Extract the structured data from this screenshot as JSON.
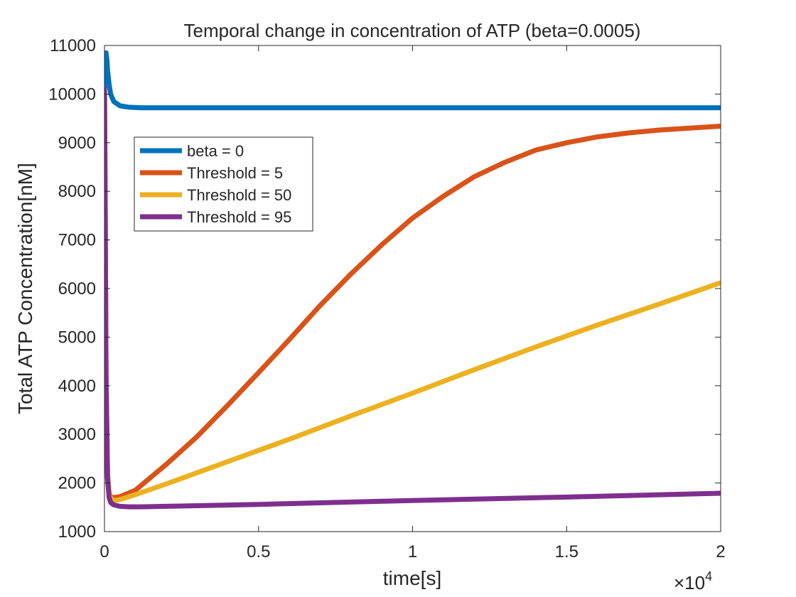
{
  "chart_data": {
    "type": "line",
    "title": "Temporal change in concentration of ATP (beta=0.0005)",
    "xlabel": "time[s]",
    "ylabel": "Total ATP Concentration[nM]",
    "x_exponent_label": "×10",
    "x_exponent_power": "4",
    "xlim": [
      0,
      2
    ],
    "ylim": [
      1000,
      11000
    ],
    "xticks": [
      0,
      0.5,
      1,
      1.5,
      2
    ],
    "xtick_labels": [
      "0",
      "0.5",
      "1",
      "1.5",
      "2"
    ],
    "yticks": [
      1000,
      2000,
      3000,
      4000,
      5000,
      6000,
      7000,
      8000,
      9000,
      10000,
      11000
    ],
    "ytick_labels": [
      "1000",
      "2000",
      "3000",
      "4000",
      "5000",
      "6000",
      "7000",
      "8000",
      "9000",
      "10000",
      "11000"
    ],
    "grid": false,
    "legend_position": "upper-left",
    "series": [
      {
        "name": "beta = 0",
        "color": "#0072BD",
        "x": [
          0,
          0.002,
          0.005,
          0.008,
          0.01,
          0.015,
          0.02,
          0.03,
          0.05,
          0.08,
          0.12,
          0.2,
          0.5,
          1.0,
          1.5,
          2.0
        ],
        "y": [
          10150,
          10700,
          10850,
          10700,
          10500,
          10200,
          10000,
          9850,
          9760,
          9730,
          9720,
          9720,
          9720,
          9720,
          9720,
          9720
        ]
      },
      {
        "name": "Threshold = 5",
        "color": "#D95319",
        "x": [
          0,
          0.002,
          0.005,
          0.01,
          0.015,
          0.02,
          0.03,
          0.05,
          0.1,
          0.2,
          0.3,
          0.4,
          0.5,
          0.6,
          0.7,
          0.8,
          0.9,
          1.0,
          1.1,
          1.2,
          1.3,
          1.4,
          1.5,
          1.6,
          1.7,
          1.8,
          1.9,
          2.0
        ],
        "y": [
          10150,
          8000,
          4200,
          2200,
          1800,
          1720,
          1700,
          1720,
          1850,
          2380,
          2950,
          3600,
          4270,
          4950,
          5650,
          6300,
          6900,
          7450,
          7900,
          8300,
          8600,
          8850,
          9000,
          9120,
          9200,
          9260,
          9300,
          9340
        ]
      },
      {
        "name": "Threshold = 50",
        "color": "#EDB120",
        "x": [
          0,
          0.002,
          0.005,
          0.01,
          0.015,
          0.02,
          0.03,
          0.05,
          0.1,
          0.2,
          0.4,
          0.6,
          0.8,
          1.0,
          1.2,
          1.4,
          1.6,
          1.8,
          2.0
        ],
        "y": [
          10150,
          8000,
          4200,
          2200,
          1800,
          1680,
          1640,
          1660,
          1760,
          1980,
          2440,
          2900,
          3380,
          3850,
          4330,
          4800,
          5250,
          5680,
          6120
        ]
      },
      {
        "name": "Threshold = 95",
        "color": "#7E2F8E",
        "x": [
          0,
          0.002,
          0.005,
          0.01,
          0.015,
          0.02,
          0.03,
          0.05,
          0.08,
          0.12,
          0.2,
          0.5,
          1.0,
          1.5,
          2.0
        ],
        "y": [
          10150,
          8000,
          4200,
          2100,
          1700,
          1600,
          1550,
          1520,
          1510,
          1510,
          1520,
          1560,
          1640,
          1710,
          1790
        ]
      }
    ]
  }
}
